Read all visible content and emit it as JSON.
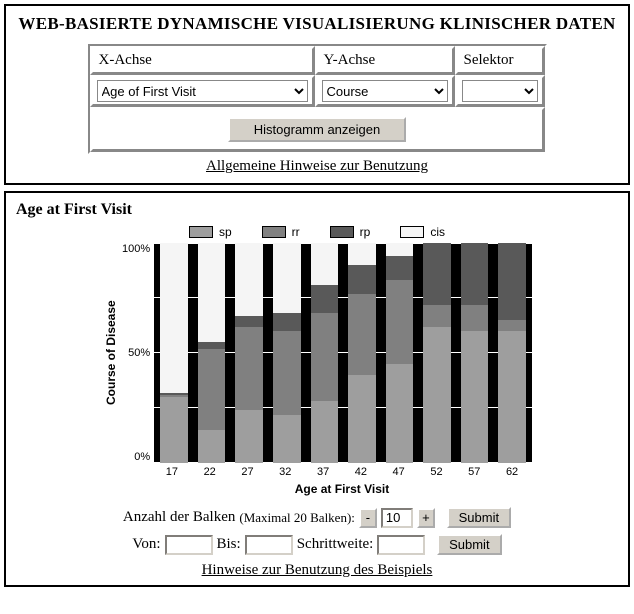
{
  "header": {
    "title": "WEB-BASIERTE DYNAMISCHE VISUALISIERUNG KLINISCHER DATEN"
  },
  "controls": {
    "x_label": "X-Achse",
    "y_label": "Y-Achse",
    "sel_label": "Selektor",
    "x_value": "Age of First Visit",
    "y_value": "Course",
    "sel_value": "",
    "show_btn": "Histogramm anzeigen",
    "help_link": "Allgemeine Hinweise zur Benutzung"
  },
  "chart": {
    "title": "Age at First Visit",
    "legend": [
      {
        "label": "sp",
        "color": "#9e9e9e"
      },
      {
        "label": "rr",
        "color": "#808080"
      },
      {
        "label": "rp",
        "color": "#595959"
      },
      {
        "label": "cis",
        "color": "#f5f5f5"
      }
    ],
    "ylabel": "Course of Disease",
    "yticks": [
      "100%",
      "50%",
      "0%"
    ],
    "xlabel": "Age at First Visit",
    "xticks": [
      "17",
      "22",
      "27",
      "32",
      "37",
      "42",
      "47",
      "52",
      "57",
      "62"
    ],
    "grid_positions_pct": [
      0,
      25,
      50,
      75,
      100
    ],
    "colors": {
      "sp": "#9e9e9e",
      "rr": "#808080",
      "rp": "#595959",
      "cis": "#f5f5f5",
      "plot_bg": "#000000",
      "grid": "#ffffff"
    },
    "bars": [
      {
        "sp": 30,
        "rr": 1,
        "rp": 1,
        "cis": 68
      },
      {
        "sp": 15,
        "rr": 37,
        "rp": 3,
        "cis": 45
      },
      {
        "sp": 24,
        "rr": 38,
        "rp": 5,
        "cis": 33
      },
      {
        "sp": 22,
        "rr": 38,
        "rp": 8,
        "cis": 32
      },
      {
        "sp": 28,
        "rr": 40,
        "rp": 13,
        "cis": 19
      },
      {
        "sp": 40,
        "rr": 37,
        "rp": 13,
        "cis": 10
      },
      {
        "sp": 45,
        "rr": 38,
        "rp": 11,
        "cis": 6
      },
      {
        "sp": 62,
        "rr": 10,
        "rp": 28,
        "cis": 0
      },
      {
        "sp": 60,
        "rr": 12,
        "rp": 28,
        "cis": 0
      },
      {
        "sp": 60,
        "rr": 5,
        "rp": 35,
        "cis": 0
      }
    ]
  },
  "form": {
    "count_label": "Anzahl der Balken",
    "count_hint": "(Maximal 20 Balken):",
    "count_value": "10",
    "from_label": "Von:",
    "to_label": "Bis:",
    "step_label": "Schrittweite:",
    "from_value": "",
    "to_value": "",
    "step_value": "",
    "minus": "-",
    "plus": "+",
    "submit": "Submit",
    "example_link": "Hinweise zur Benutzung des Beispiels"
  }
}
